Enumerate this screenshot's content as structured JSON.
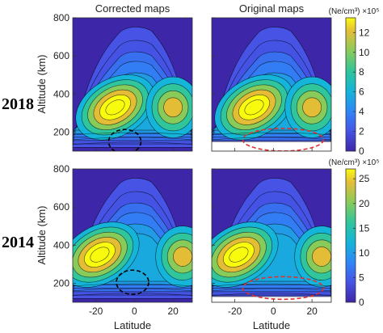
{
  "figure": {
    "row_labels": [
      "2018",
      "2014"
    ],
    "col_titles": [
      "Corrected maps",
      "Original maps"
    ],
    "ylabel": "Altitude (km)",
    "xlabel": "Latitude",
    "colorbar_label": "(Ne/cm³) ×10⁵",
    "colors": {
      "contour_low": "#3d26a8",
      "contour_mid": "#1fa8a8",
      "contour_high": "#f9fb0e",
      "contour_line": "#000000",
      "marker_corrected": "#000000",
      "marker_original": "#e03030"
    }
  },
  "chart_data": [
    {
      "type": "heatmap",
      "name": "corrected-2018",
      "title": "Corrected maps",
      "row": "2018",
      "xlabel": "",
      "ylabel": "Altitude (km)",
      "xlim": [
        -32,
        30
      ],
      "ylim": [
        100,
        800
      ],
      "yticks": [
        200,
        400,
        600,
        800
      ],
      "xticks": [
        -20,
        0,
        20
      ],
      "xtick_labels_shown": false,
      "peaks": [
        {
          "lat": -10,
          "alt": 330,
          "value": 13
        },
        {
          "lat": 20,
          "alt": 330,
          "value": 8
        }
      ],
      "marker": {
        "shape": "dashed-ellipse",
        "color": "black",
        "lat": -5,
        "alt": 150
      },
      "missing_below_km": null
    },
    {
      "type": "heatmap",
      "name": "original-2018",
      "title": "Original maps",
      "row": "2018",
      "xlabel": "",
      "ylabel": "",
      "xlim": [
        -32,
        30
      ],
      "ylim": [
        100,
        800
      ],
      "yticks": [
        200,
        400,
        600,
        800
      ],
      "xticks": [
        -20,
        0,
        20
      ],
      "ytick_labels_shown": false,
      "xtick_labels_shown": false,
      "peaks": [
        {
          "lat": -10,
          "alt": 330,
          "value": 13
        },
        {
          "lat": 20,
          "alt": 330,
          "value": 8
        }
      ],
      "marker": {
        "shape": "dashed-ellipse",
        "color": "red",
        "lat": 5,
        "alt": 160
      },
      "missing_below_km": 150
    },
    {
      "type": "heatmap",
      "name": "corrected-2014",
      "title": "",
      "row": "2014",
      "xlabel": "Latitude",
      "ylabel": "Altitude (km)",
      "xlim": [
        -32,
        30
      ],
      "ylim": [
        100,
        800
      ],
      "yticks": [
        200,
        400,
        600,
        800
      ],
      "xticks": [
        -20,
        0,
        20
      ],
      "peaks": [
        {
          "lat": -18,
          "alt": 350,
          "value": 24
        },
        {
          "lat": 25,
          "alt": 340,
          "value": 16
        }
      ],
      "marker": {
        "shape": "dashed-ellipse",
        "color": "black",
        "lat": -1,
        "alt": 205
      },
      "missing_below_km": null
    },
    {
      "type": "heatmap",
      "name": "original-2014",
      "title": "",
      "row": "2014",
      "xlabel": "Latitude",
      "ylabel": "",
      "xlim": [
        -32,
        30
      ],
      "ylim": [
        100,
        800
      ],
      "yticks": [
        200,
        400,
        600,
        800
      ],
      "xticks": [
        -20,
        0,
        20
      ],
      "ytick_labels_shown": false,
      "peaks": [
        {
          "lat": -18,
          "alt": 350,
          "value": 24
        },
        {
          "lat": 25,
          "alt": 340,
          "value": 16
        }
      ],
      "marker": {
        "shape": "dashed-ellipse",
        "color": "red",
        "lat": 5,
        "alt": 175
      },
      "missing_below_km": 130
    }
  ],
  "colorbars": [
    {
      "row": "2018",
      "label": "(Ne/cm³) ×10⁵",
      "ticks": [
        0,
        2,
        4,
        6,
        8,
        10,
        12
      ],
      "range": [
        0,
        13.5
      ]
    },
    {
      "row": "2014",
      "label": "(Ne/cm³) ×10⁵",
      "ticks": [
        0,
        5,
        10,
        15,
        20,
        25
      ],
      "range": [
        0,
        27
      ]
    }
  ]
}
